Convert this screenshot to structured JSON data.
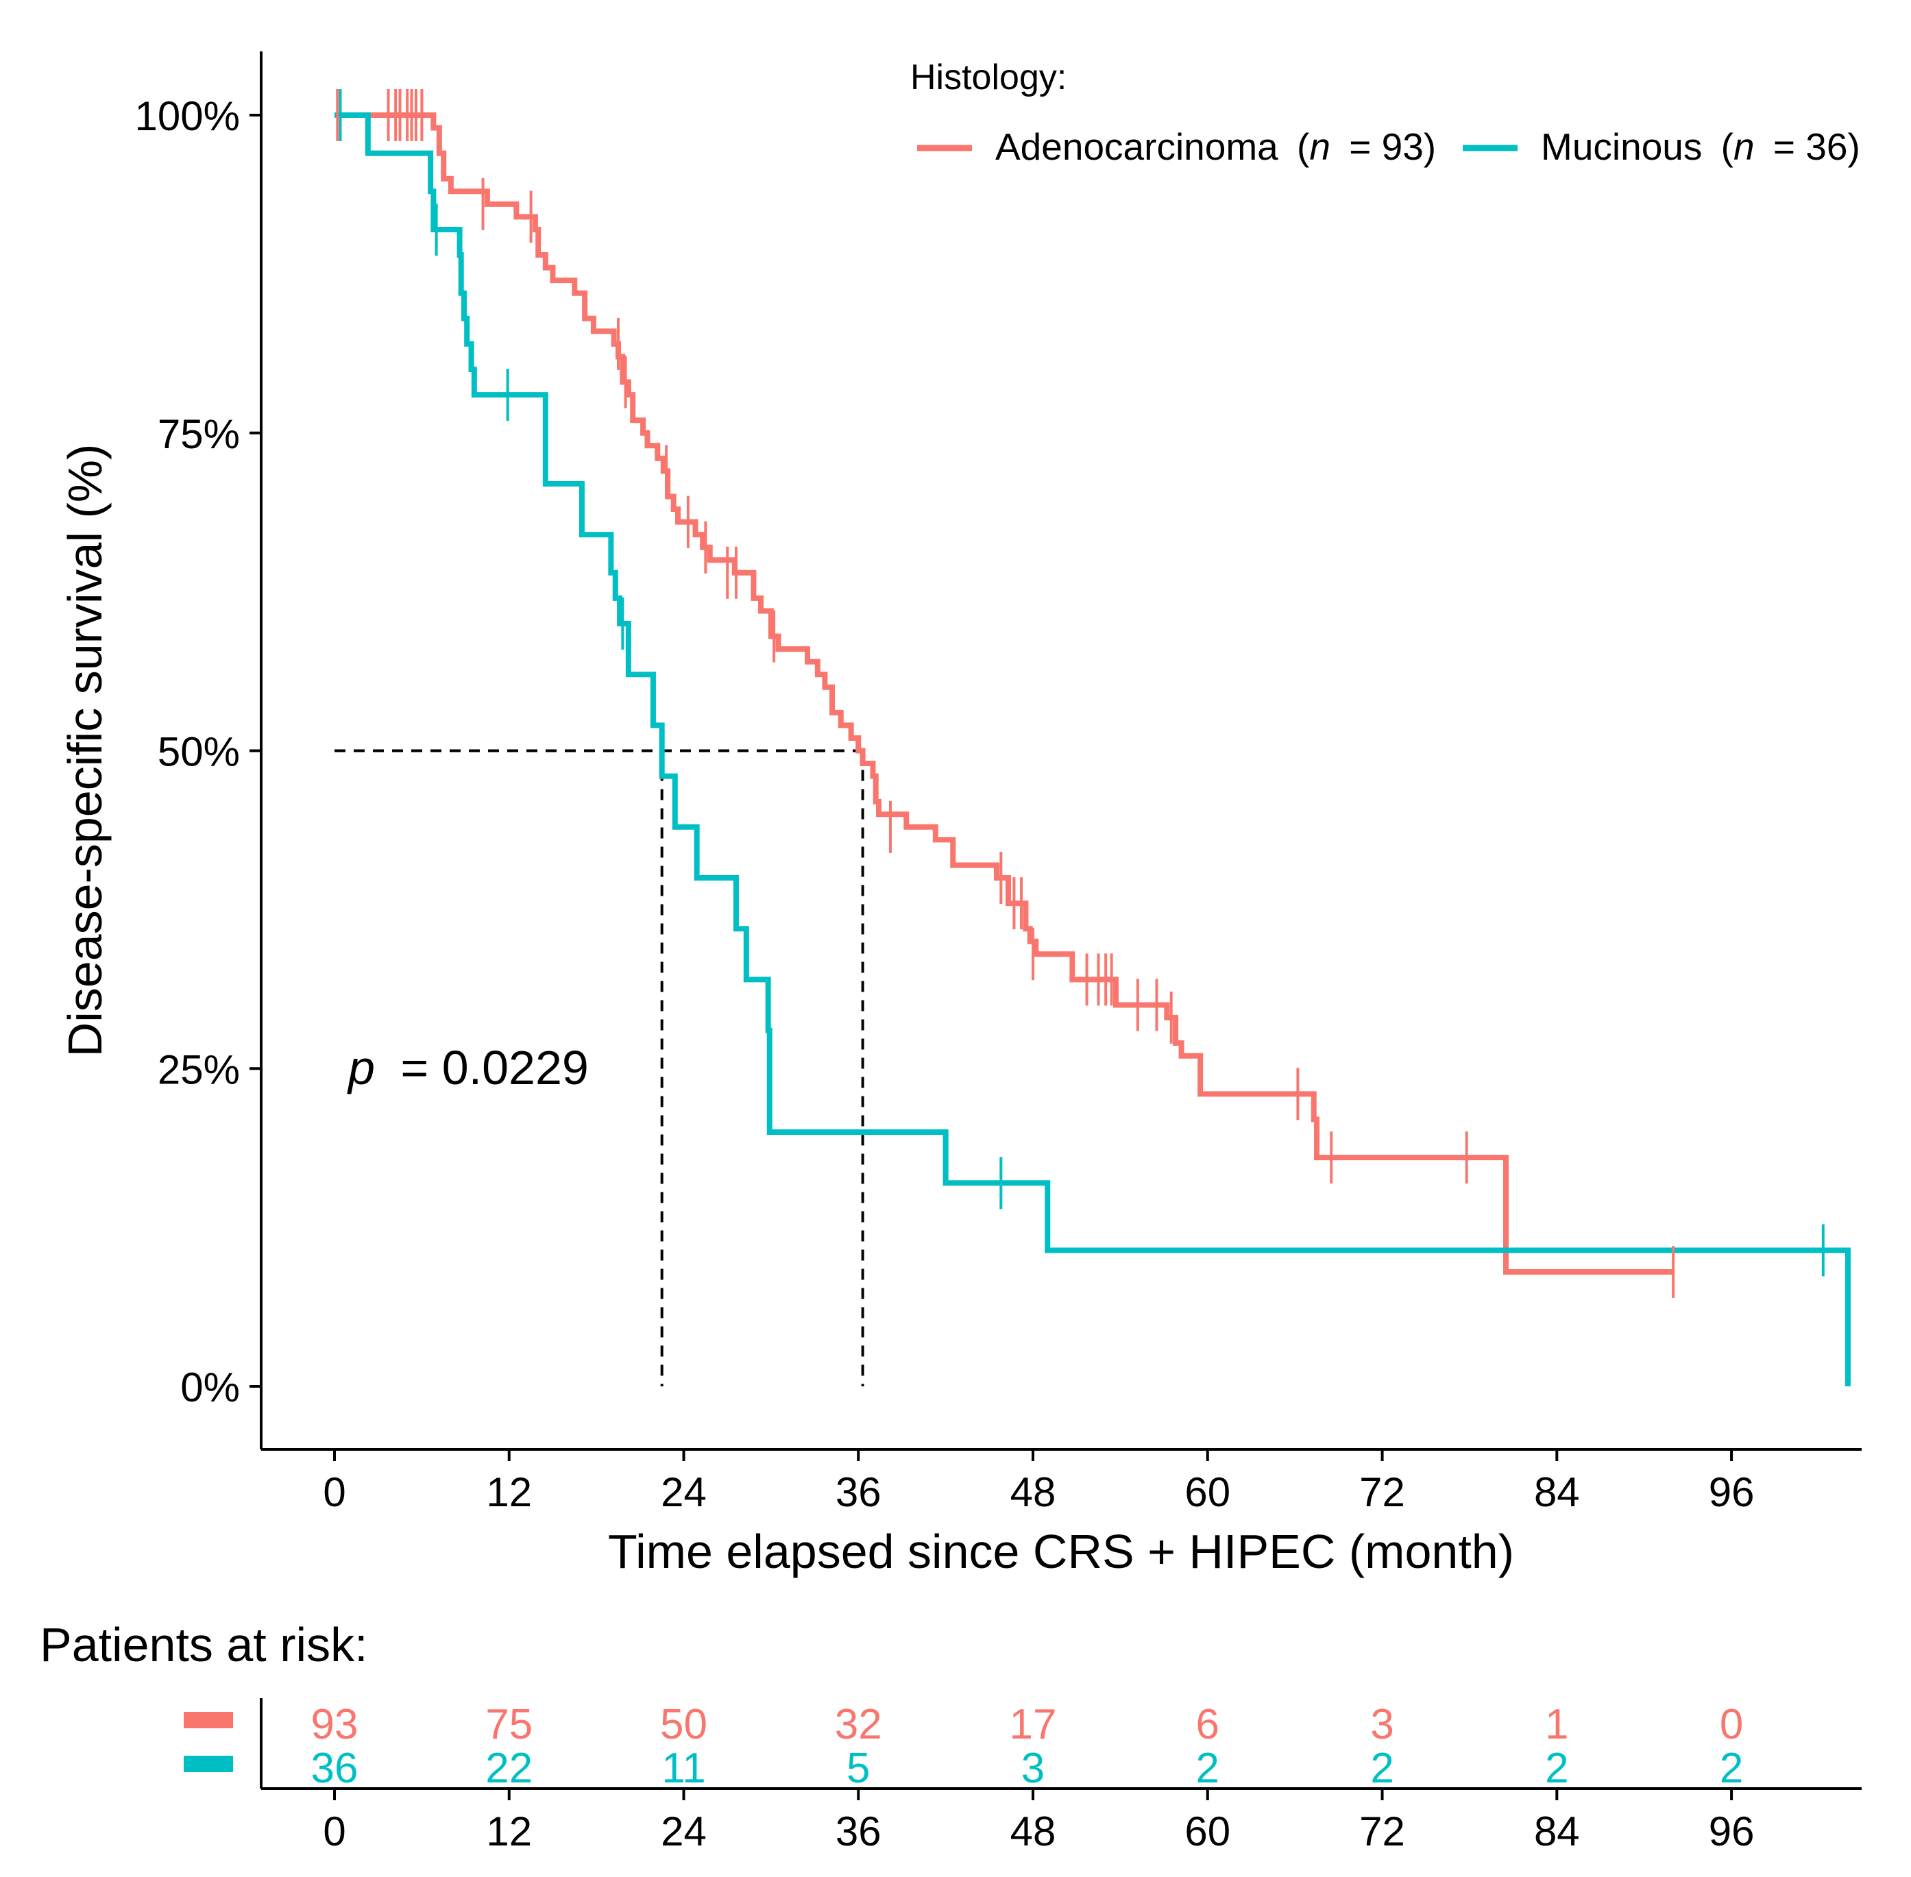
{
  "chart_data": {
    "type": "line",
    "subtype": "kaplan-meier",
    "title": "",
    "xlabel": "Time elapsed since CRS + HIPEC (month)",
    "ylabel": "Disease-specific survival (%)",
    "xlim": [
      -5,
      104
    ],
    "ylim": [
      -0.05,
      1.05
    ],
    "x_ticks": [
      0,
      12,
      24,
      36,
      48,
      60,
      72,
      84,
      96
    ],
    "y_ticks": [
      0,
      0.25,
      0.5,
      0.75,
      1.0
    ],
    "y_tick_labels": [
      "0%",
      "25%",
      "50%",
      "75%",
      "100%"
    ],
    "grid": false,
    "legend": {
      "title": "Histology:",
      "placement": "top-right",
      "entries": [
        {
          "name": "Adenocarcinoma",
          "n_label": "n",
          "n_value": "= 93)",
          "prefix": "("
        },
        {
          "name": "Mucinous",
          "n_label": "n",
          "n_value": "= 36)",
          "prefix": "("
        }
      ]
    },
    "annotation": {
      "p_label": "p",
      "p_value": "= 0.0229",
      "x": 1,
      "y": 0.25
    },
    "median_lines": [
      {
        "series": "Mucinous",
        "x": 22.5,
        "y": 0.5
      },
      {
        "series": "Adenocarcinoma",
        "x": 36.3,
        "y": 0.5
      }
    ],
    "series": [
      {
        "name": "Adenocarcinoma",
        "color": "#F8766D",
        "steps": [
          [
            0,
            1.0
          ],
          [
            6.8,
            0.99
          ],
          [
            7.2,
            0.97
          ],
          [
            7.5,
            0.95
          ],
          [
            8,
            0.94
          ],
          [
            10.5,
            0.93
          ],
          [
            12.5,
            0.92
          ],
          [
            13.8,
            0.91
          ],
          [
            14,
            0.89
          ],
          [
            14.5,
            0.88
          ],
          [
            15,
            0.87
          ],
          [
            16.5,
            0.86
          ],
          [
            17.2,
            0.84
          ],
          [
            17.8,
            0.83
          ],
          [
            19.2,
            0.82
          ],
          [
            19.5,
            0.81
          ],
          [
            19.8,
            0.79
          ],
          [
            20.2,
            0.78
          ],
          [
            20.5,
            0.76
          ],
          [
            21.2,
            0.75
          ],
          [
            21.5,
            0.74
          ],
          [
            22.2,
            0.73
          ],
          [
            22.6,
            0.72
          ],
          [
            22.9,
            0.7
          ],
          [
            23.3,
            0.69
          ],
          [
            23.6,
            0.68
          ],
          [
            24.8,
            0.67
          ],
          [
            25.3,
            0.66
          ],
          [
            25.8,
            0.65
          ],
          [
            27.5,
            0.64
          ],
          [
            28.8,
            0.62
          ],
          [
            29.3,
            0.61
          ],
          [
            30,
            0.59
          ],
          [
            30.5,
            0.58
          ],
          [
            32.5,
            0.57
          ],
          [
            33.2,
            0.56
          ],
          [
            33.7,
            0.55
          ],
          [
            34.2,
            0.53
          ],
          [
            34.8,
            0.52
          ],
          [
            35.5,
            0.51
          ],
          [
            36,
            0.5
          ],
          [
            36.3,
            0.49
          ],
          [
            37,
            0.48
          ],
          [
            37.2,
            0.46
          ],
          [
            37.4,
            0.45
          ],
          [
            39.3,
            0.44
          ],
          [
            41.3,
            0.43
          ],
          [
            42.5,
            0.41
          ],
          [
            45.5,
            0.4
          ],
          [
            46.3,
            0.38
          ],
          [
            47.5,
            0.36
          ],
          [
            47.8,
            0.35
          ],
          [
            48.2,
            0.34
          ],
          [
            50.7,
            0.32
          ],
          [
            53.7,
            0.3
          ],
          [
            57.2,
            0.29
          ],
          [
            57.8,
            0.27
          ],
          [
            58.2,
            0.26
          ],
          [
            59.5,
            0.23
          ],
          [
            67.3,
            0.21
          ],
          [
            67.5,
            0.18
          ],
          [
            80.5,
            0.09
          ],
          [
            92,
            0.09
          ]
        ],
        "censors": [
          [
            0.2,
            1.0
          ],
          [
            0.4,
            1.0
          ],
          [
            3.7,
            1.0
          ],
          [
            4.2,
            1.0
          ],
          [
            4.5,
            1.0
          ],
          [
            5,
            1.0
          ],
          [
            5.3,
            1.0
          ],
          [
            5.6,
            1.0
          ],
          [
            6,
            1.0
          ],
          [
            10.2,
            0.93
          ],
          [
            13.5,
            0.92
          ],
          [
            19.5,
            0.82
          ],
          [
            20,
            0.79
          ],
          [
            22.8,
            0.72
          ],
          [
            24.3,
            0.68
          ],
          [
            25.5,
            0.66
          ],
          [
            27,
            0.64
          ],
          [
            27.6,
            0.64
          ],
          [
            30.2,
            0.59
          ],
          [
            38.2,
            0.44
          ],
          [
            45.8,
            0.4
          ],
          [
            46.7,
            0.38
          ],
          [
            47.2,
            0.38
          ],
          [
            48,
            0.34
          ],
          [
            51.7,
            0.32
          ],
          [
            52.5,
            0.32
          ],
          [
            53,
            0.32
          ],
          [
            53.4,
            0.32
          ],
          [
            55.2,
            0.3
          ],
          [
            56.5,
            0.3
          ],
          [
            57.5,
            0.29
          ],
          [
            66.2,
            0.23
          ],
          [
            68.5,
            0.18
          ],
          [
            77.8,
            0.18
          ],
          [
            92,
            0.09
          ]
        ],
        "at_risk": [
          93,
          75,
          50,
          32,
          17,
          6,
          3,
          1,
          0
        ]
      },
      {
        "name": "Mucinous",
        "color": "#00BFC4",
        "steps": [
          [
            0,
            1.0
          ],
          [
            2.3,
            0.97
          ],
          [
            6.6,
            0.94
          ],
          [
            6.8,
            0.91
          ],
          [
            8.6,
            0.89
          ],
          [
            8.7,
            0.86
          ],
          [
            8.9,
            0.84
          ],
          [
            9.1,
            0.82
          ],
          [
            9.4,
            0.8
          ],
          [
            9.6,
            0.78
          ],
          [
            14.5,
            0.71
          ],
          [
            17,
            0.67
          ],
          [
            19,
            0.64
          ],
          [
            19.3,
            0.62
          ],
          [
            19.6,
            0.6
          ],
          [
            20.2,
            0.56
          ],
          [
            21.9,
            0.52
          ],
          [
            22.5,
            0.48
          ],
          [
            23.4,
            0.44
          ],
          [
            24.9,
            0.4
          ],
          [
            27.6,
            0.36
          ],
          [
            28.3,
            0.32
          ],
          [
            29.8,
            0.28
          ],
          [
            29.9,
            0.2
          ],
          [
            42,
            0.16
          ],
          [
            49,
            0.107
          ],
          [
            104,
            0.107
          ],
          [
            104,
            0.0
          ]
        ],
        "censors": [
          [
            0.4,
            1.0
          ],
          [
            7,
            0.91
          ],
          [
            11.9,
            0.78
          ],
          [
            19.8,
            0.6
          ],
          [
            45.8,
            0.16
          ],
          [
            102.3,
            0.107
          ]
        ],
        "at_risk": [
          36,
          22,
          11,
          5,
          3,
          2,
          2,
          2,
          2
        ]
      }
    ],
    "risk_table": {
      "title": "Patients at risk:",
      "x_ticks": [
        0,
        12,
        24,
        36,
        48,
        60,
        72,
        84,
        96
      ]
    }
  }
}
